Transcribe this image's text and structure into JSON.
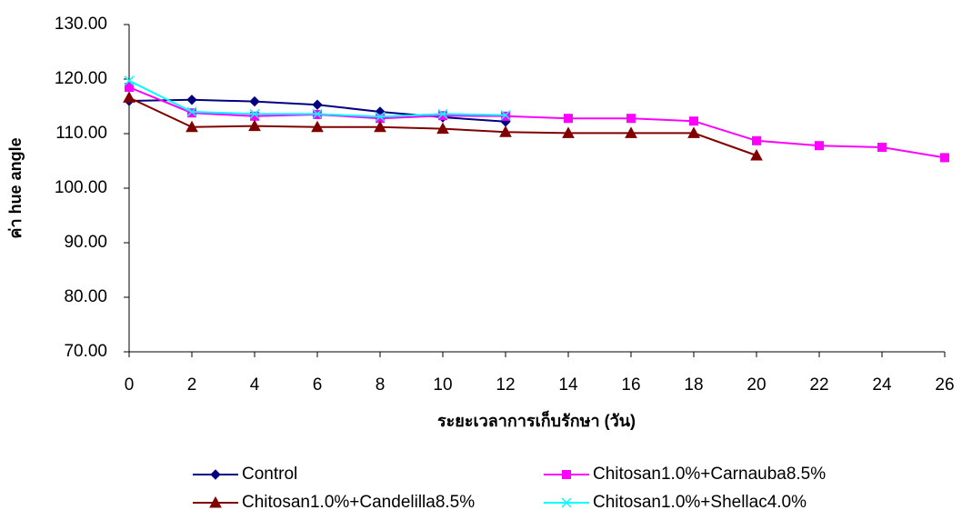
{
  "chart_data": {
    "type": "line",
    "x_label": "ระยะเวลาการเก็บรักษา (วัน)",
    "y_label": "ค่า hue angle",
    "x": [
      0,
      2,
      4,
      6,
      8,
      10,
      12,
      14,
      16,
      18,
      20,
      22,
      24,
      26
    ],
    "xlim": [
      0,
      26
    ],
    "xticks": [
      0,
      2,
      4,
      6,
      8,
      10,
      12,
      14,
      16,
      18,
      20,
      22,
      24,
      26
    ],
    "ylim": [
      70,
      130
    ],
    "yticks": [
      {
        "value": 70,
        "label": "70.00"
      },
      {
        "value": 80,
        "label": "80.00"
      },
      {
        "value": 90,
        "label": "90.00"
      },
      {
        "value": 100,
        "label": "100.00"
      },
      {
        "value": 110,
        "label": "110.00"
      },
      {
        "value": 120,
        "label": "120.00"
      },
      {
        "value": 130,
        "label": "130.00"
      }
    ],
    "grid": false,
    "legend": "bottom",
    "series": [
      {
        "name": "Control",
        "color": "#000080",
        "marker": "diamond",
        "values": [
          116.0,
          116.2,
          115.9,
          115.3,
          114.0,
          113.0,
          112.2,
          null,
          null,
          null,
          null,
          null,
          null,
          null
        ]
      },
      {
        "name": "Chitosan1.0%+Carnauba8.5%",
        "color": "#ff00ff",
        "marker": "square",
        "values": [
          118.5,
          113.8,
          113.2,
          113.5,
          112.8,
          113.3,
          113.2,
          112.8,
          112.8,
          112.3,
          108.7,
          107.8,
          107.5,
          105.6
        ]
      },
      {
        "name": "Chitosan1.0%+Candelilla8.5%",
        "color": "#800000",
        "marker": "triangle",
        "values": [
          116.6,
          111.2,
          111.4,
          111.2,
          111.2,
          110.9,
          110.3,
          110.1,
          110.1,
          110.1,
          106.0,
          null,
          null,
          null
        ]
      },
      {
        "name": "Chitosan1.0%+Shellac4.0%",
        "color": "#00ffff",
        "marker": "x",
        "values": [
          119.7,
          114.0,
          113.6,
          113.6,
          113.1,
          113.6,
          113.4,
          null,
          null,
          null,
          null,
          null,
          null,
          null
        ]
      }
    ]
  }
}
